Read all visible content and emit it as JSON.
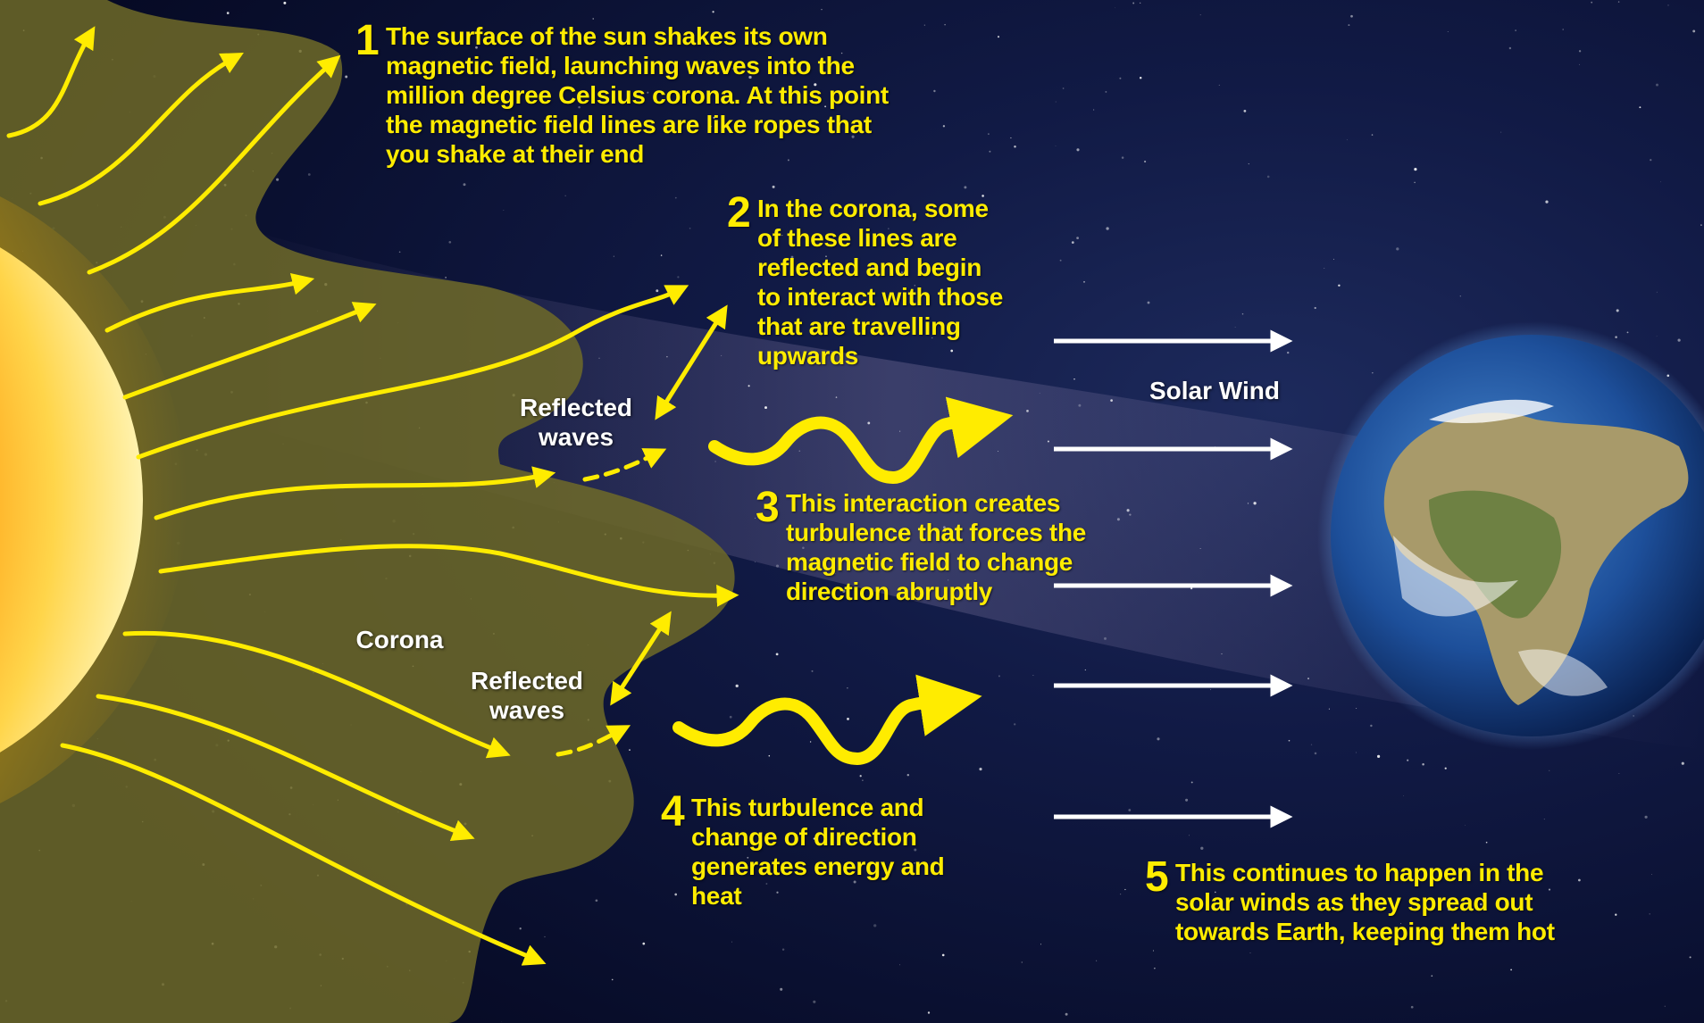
{
  "steps": [
    {
      "number": "1",
      "text": "The surface of the sun shakes its own magnetic field, launching waves into the million degree Celsius corona.  At this point the magnetic field lines are like ropes that you shake at their end"
    },
    {
      "number": "2",
      "text": "In the corona, some of these lines  are reflected and begin to interact with those that are travelling upwards"
    },
    {
      "number": "3",
      "text": "This interaction creates turbulence that forces the magnetic field to change direction abruptly"
    },
    {
      "number": "4",
      "text": "This turbulence and change of direction generates energy and heat"
    },
    {
      "number": "5",
      "text": "This continues to happen in the solar winds as they spread out towards Earth, keeping them hot"
    }
  ],
  "labels": {
    "reflected_waves_top": "Reflected waves",
    "reflected_waves_bottom": "Reflected waves",
    "corona": "Corona",
    "solar_wind": "Solar Wind"
  },
  "colors": {
    "arrow": "#ffec00",
    "text": "#ffec00",
    "label": "#ffffff",
    "corona": "#6f6a28",
    "space": "#0a0f2e",
    "sun": "#ff8a00",
    "earth_ocean": "#1d4f9a"
  },
  "icons": [
    "sun-icon",
    "earth-icon",
    "wave-arrow-icon",
    "solar-wind-arrow-icon"
  ]
}
